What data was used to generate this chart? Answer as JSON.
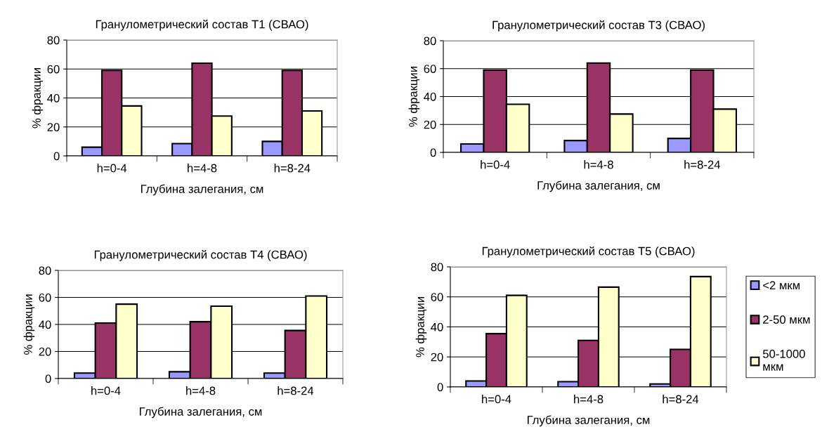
{
  "chart_data": [
    {
      "type": "bar",
      "title": "Гранулометрический состав Т1 (СВАО)",
      "xlabel": "Глубина залегания, см",
      "ylabel": "% фракции",
      "categories": [
        "h=0-4",
        "h=4-8",
        "h=8-24"
      ],
      "ylim": [
        0,
        80
      ],
      "yticks": [
        0,
        20,
        40,
        60,
        80
      ],
      "grid": "y",
      "legend": false,
      "series": [
        {
          "color": "#9999ff",
          "values": [
            6,
            8.5,
            10
          ]
        },
        {
          "color": "#993366",
          "values": [
            59,
            64,
            59
          ]
        },
        {
          "color": "#ffffcc",
          "values": [
            34.5,
            27.5,
            31
          ]
        }
      ]
    },
    {
      "type": "bar",
      "title": "Гранулометрический состав Т3 (СВАО)",
      "xlabel": "Глубина залегания, см",
      "ylabel": "% фракции",
      "categories": [
        "h=0-4",
        "h=4-8",
        "h=8-24"
      ],
      "ylim": [
        0,
        80
      ],
      "yticks": [
        0,
        20,
        40,
        60,
        80
      ],
      "grid": "y",
      "legend": false,
      "series": [
        {
          "color": "#9999ff",
          "values": [
            6,
            8.5,
            10
          ]
        },
        {
          "color": "#993366",
          "values": [
            59,
            64,
            59
          ]
        },
        {
          "color": "#ffffcc",
          "values": [
            34.5,
            27.5,
            31
          ]
        }
      ]
    },
    {
      "type": "bar",
      "title": "Гранулометрический состав Т4 (СВАО)",
      "xlabel": "Глубина залегания, см",
      "ylabel": "% фракции",
      "categories": [
        "h=0-4",
        "h=4-8",
        "h=8-24"
      ],
      "ylim": [
        0,
        80
      ],
      "yticks": [
        0,
        20,
        40,
        60,
        80
      ],
      "grid": "y",
      "legend": false,
      "series": [
        {
          "color": "#9999ff",
          "values": [
            4,
            5,
            4
          ]
        },
        {
          "color": "#993366",
          "values": [
            41,
            42,
            35.5
          ]
        },
        {
          "color": "#ffffcc",
          "values": [
            55,
            53.5,
            61
          ]
        }
      ]
    },
    {
      "type": "bar",
      "title": "Гранулометрический состав Т5 (СВАО)",
      "xlabel": "Глубина залегания, см",
      "ylabel": "% фракции",
      "categories": [
        "h=0-4",
        "h=4-8",
        "h=8-24"
      ],
      "ylim": [
        0,
        80
      ],
      "yticks": [
        0,
        20,
        40,
        60,
        80
      ],
      "grid": "y",
      "legend": "right",
      "series": [
        {
          "name": "<2 мкм",
          "color": "#9999ff",
          "values": [
            4,
            3.5,
            2
          ]
        },
        {
          "name": "2-50 мкм",
          "color": "#993366",
          "values": [
            35.5,
            31,
            25
          ]
        },
        {
          "name": "50-1000\nмкм",
          "color": "#ffffcc",
          "values": [
            61,
            66.5,
            73.5
          ]
        }
      ]
    }
  ]
}
